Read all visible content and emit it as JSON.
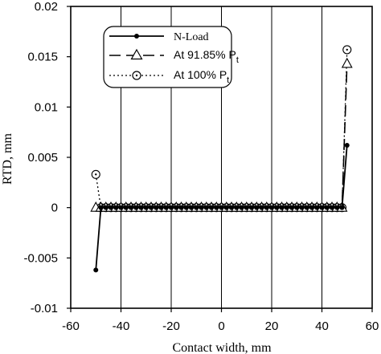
{
  "chart_data": {
    "type": "line",
    "xlabel": "Contact width, mm",
    "ylabel": "RTD, mm",
    "xlim": [
      -60,
      60
    ],
    "ylim": [
      -0.01,
      0.02
    ],
    "x_ticks": [
      "-60",
      "-40",
      "-20",
      "0",
      "20",
      "40",
      "60"
    ],
    "y_ticks": [
      "-0.01",
      "-0.005",
      "0",
      "0.005",
      "0.01",
      "0.015",
      "0.02"
    ],
    "grid": "vertical",
    "legend_position": "top-center",
    "series": [
      {
        "name": "N-Load",
        "line_style": "solid",
        "marker": "filled-circle",
        "points": [
          [
            -50,
            -0.0062
          ],
          [
            -48,
            0
          ],
          [
            -46,
            0
          ],
          [
            -44,
            0
          ],
          [
            -42,
            0
          ],
          [
            -40,
            0
          ],
          [
            -38,
            0
          ],
          [
            -36,
            0
          ],
          [
            -34,
            0
          ],
          [
            -32,
            0
          ],
          [
            -30,
            0
          ],
          [
            -28,
            0
          ],
          [
            -26,
            0
          ],
          [
            -24,
            0
          ],
          [
            -22,
            0
          ],
          [
            -20,
            0
          ],
          [
            -18,
            0
          ],
          [
            -16,
            0
          ],
          [
            -14,
            0
          ],
          [
            -12,
            0
          ],
          [
            -10,
            0
          ],
          [
            -8,
            0
          ],
          [
            -6,
            0
          ],
          [
            -4,
            0
          ],
          [
            -2,
            0
          ],
          [
            0,
            0
          ],
          [
            2,
            0
          ],
          [
            4,
            0
          ],
          [
            6,
            0
          ],
          [
            8,
            0
          ],
          [
            10,
            0
          ],
          [
            12,
            0
          ],
          [
            14,
            0
          ],
          [
            16,
            0
          ],
          [
            18,
            0
          ],
          [
            20,
            0
          ],
          [
            22,
            0
          ],
          [
            24,
            0
          ],
          [
            26,
            0
          ],
          [
            28,
            0
          ],
          [
            30,
            0
          ],
          [
            32,
            0
          ],
          [
            34,
            0
          ],
          [
            36,
            0
          ],
          [
            38,
            0
          ],
          [
            40,
            0
          ],
          [
            42,
            0
          ],
          [
            44,
            0
          ],
          [
            46,
            0
          ],
          [
            48,
            0
          ],
          [
            50,
            0.0062
          ]
        ]
      },
      {
        "name": "At 91.85% P",
        "subscript": "t",
        "line_style": "long-dash",
        "marker": "open-triangle",
        "points": [
          [
            -50,
            0
          ],
          [
            -48,
            0
          ],
          [
            -46,
            0
          ],
          [
            -44,
            0
          ],
          [
            -42,
            0
          ],
          [
            -40,
            0
          ],
          [
            -38,
            0
          ],
          [
            -36,
            0
          ],
          [
            -34,
            0
          ],
          [
            -32,
            0
          ],
          [
            -30,
            0
          ],
          [
            -28,
            0
          ],
          [
            -26,
            0
          ],
          [
            -24,
            0
          ],
          [
            -22,
            0
          ],
          [
            -20,
            0
          ],
          [
            -18,
            0
          ],
          [
            -16,
            0
          ],
          [
            -14,
            0
          ],
          [
            -12,
            0
          ],
          [
            -10,
            0
          ],
          [
            -8,
            0
          ],
          [
            -6,
            0
          ],
          [
            -4,
            0
          ],
          [
            -2,
            0
          ],
          [
            0,
            0
          ],
          [
            2,
            0
          ],
          [
            4,
            0
          ],
          [
            6,
            0
          ],
          [
            8,
            0
          ],
          [
            10,
            0
          ],
          [
            12,
            0
          ],
          [
            14,
            0
          ],
          [
            16,
            0
          ],
          [
            18,
            0
          ],
          [
            20,
            0
          ],
          [
            22,
            0
          ],
          [
            24,
            0
          ],
          [
            26,
            0
          ],
          [
            28,
            0
          ],
          [
            30,
            0
          ],
          [
            32,
            0
          ],
          [
            34,
            0
          ],
          [
            36,
            0
          ],
          [
            38,
            0
          ],
          [
            40,
            0
          ],
          [
            42,
            0
          ],
          [
            44,
            0
          ],
          [
            46,
            0
          ],
          [
            48,
            0
          ],
          [
            50,
            0.0143
          ]
        ]
      },
      {
        "name": "At 100% P",
        "subscript": "t",
        "line_style": "dotted",
        "marker": "open-circle-dot",
        "points": [
          [
            -50,
            0.0033
          ],
          [
            -48,
            0
          ],
          [
            -46,
            0
          ],
          [
            -44,
            0
          ],
          [
            -42,
            0
          ],
          [
            -40,
            0
          ],
          [
            -38,
            0
          ],
          [
            -36,
            0
          ],
          [
            -34,
            0
          ],
          [
            -32,
            0
          ],
          [
            -30,
            0
          ],
          [
            -28,
            0
          ],
          [
            -26,
            0
          ],
          [
            -24,
            0
          ],
          [
            -22,
            0
          ],
          [
            -20,
            0
          ],
          [
            -18,
            0
          ],
          [
            -16,
            0
          ],
          [
            -14,
            0
          ],
          [
            -12,
            0
          ],
          [
            -10,
            0
          ],
          [
            -8,
            0
          ],
          [
            -6,
            0
          ],
          [
            -4,
            0
          ],
          [
            -2,
            0
          ],
          [
            0,
            0
          ],
          [
            2,
            0
          ],
          [
            4,
            0
          ],
          [
            6,
            0
          ],
          [
            8,
            0
          ],
          [
            10,
            0
          ],
          [
            12,
            0
          ],
          [
            14,
            0
          ],
          [
            16,
            0
          ],
          [
            18,
            0
          ],
          [
            20,
            0
          ],
          [
            22,
            0
          ],
          [
            24,
            0
          ],
          [
            26,
            0
          ],
          [
            28,
            0
          ],
          [
            30,
            0
          ],
          [
            32,
            0
          ],
          [
            34,
            0
          ],
          [
            36,
            0
          ],
          [
            38,
            0
          ],
          [
            40,
            0
          ],
          [
            42,
            0
          ],
          [
            44,
            0
          ],
          [
            46,
            0
          ],
          [
            48,
            0
          ],
          [
            50,
            0.0157
          ]
        ]
      }
    ]
  }
}
